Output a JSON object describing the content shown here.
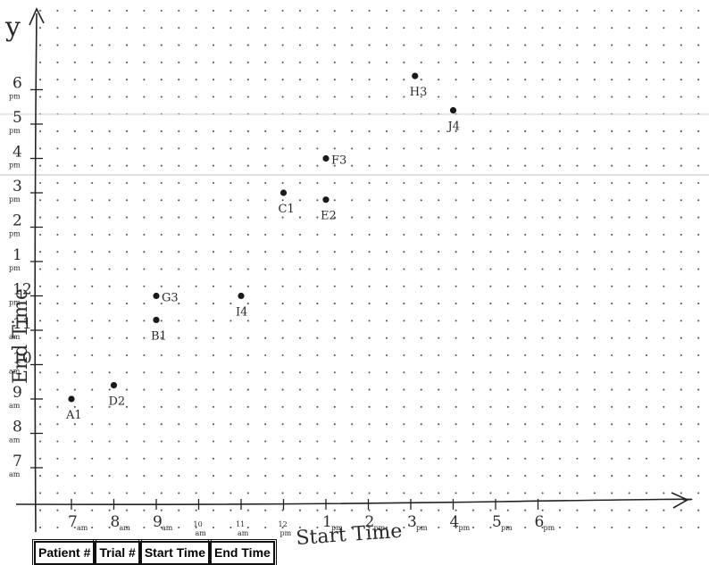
{
  "chart_data": {
    "type": "scatter",
    "title": "",
    "xlabel": "Start Time",
    "ylabel": "End Time",
    "xlim": [
      6.3,
      19.5
    ],
    "ylim": [
      6.7,
      22.2
    ],
    "grid": "dotted",
    "x_ticks": [
      {
        "value": 7,
        "num": "7",
        "sub": "am"
      },
      {
        "value": 8,
        "num": "8",
        "sub": "am"
      },
      {
        "value": 9,
        "num": "9",
        "sub": "am"
      },
      {
        "value": 10,
        "num": "10",
        "sub": "am"
      },
      {
        "value": 11,
        "num": "11",
        "sub": "am"
      },
      {
        "value": 12,
        "num": "12",
        "sub": "pm"
      },
      {
        "value": 13,
        "num": "1",
        "sub": "pm"
      },
      {
        "value": 14,
        "num": "2",
        "sub": "pm"
      },
      {
        "value": 15,
        "num": "3",
        "sub": "pm"
      },
      {
        "value": 16,
        "num": "4",
        "sub": "pm"
      },
      {
        "value": 17,
        "num": "5",
        "sub": "pm"
      },
      {
        "value": 18,
        "num": "6",
        "sub": "pm"
      }
    ],
    "y_ticks": [
      {
        "value": 7,
        "num": "7",
        "sub": "am"
      },
      {
        "value": 8,
        "num": "8",
        "sub": "am"
      },
      {
        "value": 9,
        "num": "9",
        "sub": "am"
      },
      {
        "value": 10,
        "num": "10",
        "sub": "am"
      },
      {
        "value": 11,
        "num": "11",
        "sub": "am"
      },
      {
        "value": 12,
        "num": "12",
        "sub": "pm"
      },
      {
        "value": 13,
        "num": "1",
        "sub": "pm"
      },
      {
        "value": 14,
        "num": "2",
        "sub": "pm"
      },
      {
        "value": 15,
        "num": "3",
        "sub": "pm"
      },
      {
        "value": 16,
        "num": "4",
        "sub": "pm"
      },
      {
        "value": 17,
        "num": "5",
        "sub": "pm"
      },
      {
        "value": 18,
        "num": "6",
        "sub": "pm"
      }
    ],
    "points": [
      {
        "label": "A1",
        "x": 7.0,
        "y": 9.0
      },
      {
        "label": "D2",
        "x": 8.0,
        "y": 9.4
      },
      {
        "label": "B1",
        "x": 9.0,
        "y": 11.3
      },
      {
        "label": "G3",
        "x": 9.0,
        "y": 12.0
      },
      {
        "label": "I4",
        "x": 11.0,
        "y": 12.0
      },
      {
        "label": "C1",
        "x": 12.0,
        "y": 15.0
      },
      {
        "label": "E2",
        "x": 13.0,
        "y": 14.8
      },
      {
        "label": "F3",
        "x": 13.0,
        "y": 16.0
      },
      {
        "label": "H3",
        "x": 15.1,
        "y": 18.4
      },
      {
        "label": "J4",
        "x": 16.0,
        "y": 17.4
      }
    ]
  },
  "table": {
    "headers": [
      "Patient #",
      "Trial #",
      "Start Time",
      "End Time"
    ]
  }
}
